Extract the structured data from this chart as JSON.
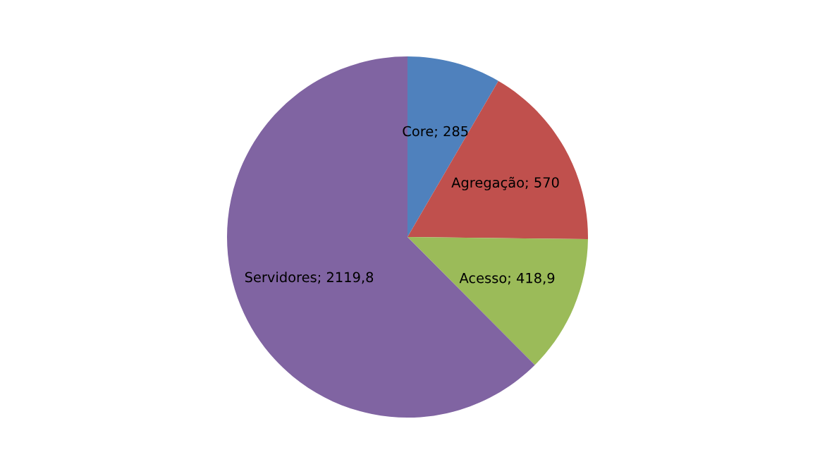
{
  "chart_data": {
    "type": "pie",
    "categories": [
      "Core",
      "Agregação",
      "Acesso",
      "Servidores"
    ],
    "values": [
      285,
      570,
      418.9,
      2119.8
    ],
    "colors": [
      "#4f81bd",
      "#c0504d",
      "#9bbb59",
      "#8064a2"
    ],
    "value_labels": [
      "; 285",
      "; 570",
      "; 418,9",
      "; 2119,8"
    ],
    "legend": false
  }
}
